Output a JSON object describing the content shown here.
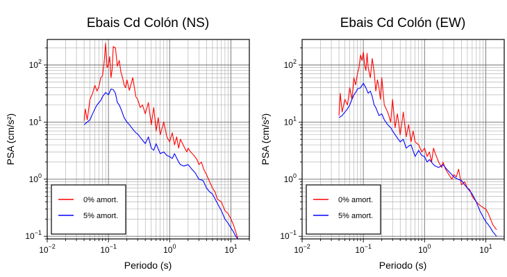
{
  "chart_data": [
    {
      "type": "line",
      "title": "Ebais Cd Colón (NS)",
      "xlabel": "Periodo (s)",
      "ylabel": "PSA (cm/s²)",
      "x_scale": "log",
      "y_scale": "log",
      "xlim": [
        0.01,
        20
      ],
      "ylim": [
        0.09,
        280
      ],
      "x_ticks": [
        {
          "base": "10",
          "exp": "−2",
          "value": 0.01
        },
        {
          "base": "10",
          "exp": "−1",
          "value": 0.1
        },
        {
          "base": "10",
          "exp": "0",
          "value": 1
        },
        {
          "base": "10",
          "exp": "1",
          "value": 10
        }
      ],
      "y_ticks": [
        {
          "base": "10",
          "exp": "−1",
          "value": 0.1
        },
        {
          "base": "10",
          "exp": "0",
          "value": 1
        },
        {
          "base": "10",
          "exp": "1",
          "value": 10
        },
        {
          "base": "10",
          "exp": "2",
          "value": 100
        }
      ],
      "grid": true,
      "legend_position": "bottom-left",
      "series": [
        {
          "name": "0% amort.",
          "color": "#ff0000",
          "x": [
            0.04,
            0.042,
            0.045,
            0.05,
            0.055,
            0.06,
            0.065,
            0.07,
            0.075,
            0.08,
            0.085,
            0.09,
            0.095,
            0.1,
            0.105,
            0.11,
            0.115,
            0.12,
            0.13,
            0.14,
            0.15,
            0.16,
            0.17,
            0.18,
            0.19,
            0.2,
            0.22,
            0.25,
            0.28,
            0.3,
            0.33,
            0.36,
            0.4,
            0.45,
            0.5,
            0.55,
            0.6,
            0.65,
            0.7,
            0.8,
            0.9,
            1.0,
            1.1,
            1.2,
            1.3,
            1.4,
            1.5,
            1.7,
            1.9,
            2.0,
            2.2,
            2.5,
            2.8,
            3.0,
            3.3,
            3.6,
            4.0,
            4.5,
            5.0,
            5.5,
            6.0,
            7.0,
            8.0,
            9.0,
            10.0,
            11.0,
            12.0,
            13.0
          ],
          "values": [
            10.5,
            17,
            11,
            25,
            32,
            44,
            35,
            42,
            60,
            65,
            110,
            240,
            90,
            100,
            140,
            60,
            85,
            210,
            200,
            95,
            120,
            75,
            60,
            45,
            40,
            55,
            36,
            60,
            28,
            25,
            18,
            20,
            14,
            22,
            9,
            18,
            7,
            12,
            6,
            10,
            5.5,
            4.5,
            6.5,
            4,
            5.5,
            3.5,
            5,
            3.8,
            3,
            3.5,
            3.0,
            2.6,
            2.2,
            1.8,
            2.0,
            1.5,
            1.2,
            0.9,
            0.7,
            0.6,
            0.45,
            0.4,
            0.28,
            0.25,
            0.2,
            0.16,
            0.12,
            0.09
          ]
        },
        {
          "name": "5% amort.",
          "color": "#0000ff",
          "x": [
            0.04,
            0.045,
            0.05,
            0.055,
            0.06,
            0.065,
            0.07,
            0.075,
            0.08,
            0.09,
            0.1,
            0.11,
            0.12,
            0.13,
            0.14,
            0.15,
            0.16,
            0.18,
            0.2,
            0.22,
            0.25,
            0.28,
            0.3,
            0.35,
            0.4,
            0.45,
            0.5,
            0.55,
            0.6,
            0.7,
            0.8,
            0.9,
            1.0,
            1.1,
            1.2,
            1.4,
            1.5,
            1.7,
            2.0,
            2.3,
            2.6,
            3.0,
            3.5,
            4.0,
            4.5,
            5.0,
            6.0,
            7.0,
            8.0,
            9.0,
            10.0,
            11.0,
            12.0,
            13.0
          ],
          "values": [
            9.0,
            10,
            11,
            14,
            17,
            20,
            22,
            24,
            28,
            33,
            30,
            38,
            37,
            32,
            22,
            20,
            17,
            12,
            10,
            9,
            7.5,
            6.5,
            6.2,
            5.0,
            4.2,
            5.5,
            3.5,
            3.2,
            4.2,
            2.8,
            3.0,
            2.6,
            2.5,
            2.3,
            2.8,
            2.0,
            1.8,
            1.7,
            1.8,
            1.5,
            1.3,
            1.0,
            0.95,
            0.7,
            0.6,
            0.55,
            0.38,
            0.28,
            0.2,
            0.17,
            0.14,
            0.12,
            0.1,
            0.09
          ]
        }
      ]
    },
    {
      "type": "line",
      "title": "Ebais Cd Colón (EW)",
      "xlabel": "Periodo (s)",
      "ylabel": "PSA (cm/s²)",
      "x_scale": "log",
      "y_scale": "log",
      "xlim": [
        0.01,
        20
      ],
      "ylim": [
        0.09,
        280
      ],
      "x_ticks": [
        {
          "base": "10",
          "exp": "−2",
          "value": 0.01
        },
        {
          "base": "10",
          "exp": "−1",
          "value": 0.1
        },
        {
          "base": "10",
          "exp": "0",
          "value": 1
        },
        {
          "base": "10",
          "exp": "1",
          "value": 10
        }
      ],
      "y_ticks": [
        {
          "base": "10",
          "exp": "−1",
          "value": 0.1
        },
        {
          "base": "10",
          "exp": "0",
          "value": 1
        },
        {
          "base": "10",
          "exp": "1",
          "value": 10
        },
        {
          "base": "10",
          "exp": "2",
          "value": 100
        }
      ],
      "grid": true,
      "legend_position": "bottom-left",
      "series": [
        {
          "name": "0% amort.",
          "color": "#ff0000",
          "x": [
            0.04,
            0.042,
            0.045,
            0.05,
            0.055,
            0.06,
            0.065,
            0.07,
            0.075,
            0.08,
            0.085,
            0.09,
            0.095,
            0.1,
            0.105,
            0.11,
            0.115,
            0.12,
            0.13,
            0.14,
            0.15,
            0.16,
            0.17,
            0.18,
            0.19,
            0.2,
            0.22,
            0.25,
            0.28,
            0.3,
            0.33,
            0.36,
            0.4,
            0.45,
            0.5,
            0.55,
            0.6,
            0.65,
            0.7,
            0.8,
            0.9,
            1.0,
            1.1,
            1.2,
            1.3,
            1.4,
            1.5,
            1.7,
            1.9,
            2.0,
            2.2,
            2.5,
            2.8,
            3.0,
            3.3,
            3.6,
            4.0,
            4.5,
            5.0,
            5.5,
            6.0,
            7.0,
            8.0,
            9.0,
            10.0,
            11.0,
            12.0,
            13.0,
            15.0
          ],
          "values": [
            13,
            32,
            15,
            25,
            20,
            40,
            25,
            60,
            45,
            70,
            90,
            150,
            120,
            170,
            100,
            80,
            160,
            90,
            60,
            130,
            75,
            35,
            55,
            40,
            25,
            60,
            20,
            15,
            10,
            25,
            8,
            14,
            6,
            15,
            5.5,
            9,
            4.5,
            7,
            4.5,
            4,
            3.0,
            3.5,
            2.5,
            3.0,
            2.0,
            3.5,
            2.8,
            2.0,
            1.6,
            2.0,
            1.5,
            1.2,
            1.0,
            1.2,
            1.1,
            1.5,
            0.8,
            0.9,
            0.7,
            0.65,
            0.5,
            0.4,
            0.35,
            0.32,
            0.3,
            0.25,
            0.2,
            0.16,
            0.13
          ]
        },
        {
          "name": "5% amort.",
          "color": "#0000ff",
          "x": [
            0.04,
            0.045,
            0.05,
            0.055,
            0.06,
            0.065,
            0.07,
            0.075,
            0.08,
            0.09,
            0.1,
            0.11,
            0.12,
            0.13,
            0.14,
            0.15,
            0.16,
            0.18,
            0.2,
            0.22,
            0.25,
            0.28,
            0.3,
            0.35,
            0.4,
            0.45,
            0.5,
            0.55,
            0.6,
            0.7,
            0.8,
            0.9,
            1.0,
            1.1,
            1.2,
            1.4,
            1.5,
            1.7,
            2.0,
            2.3,
            2.6,
            3.0,
            3.5,
            4.0,
            4.5,
            5.0,
            6.0,
            7.0,
            8.0,
            9.0,
            10.0,
            11.0,
            12.0,
            13.0,
            15.0
          ],
          "values": [
            12,
            13,
            15,
            17,
            20,
            25,
            30,
            33,
            38,
            40,
            48,
            40,
            32,
            35,
            28,
            20,
            18,
            13,
            14,
            11,
            9,
            8,
            7,
            5.5,
            4.5,
            5.0,
            3.5,
            3.8,
            4.0,
            2.5,
            3.2,
            2.6,
            2.5,
            2.0,
            2.2,
            1.8,
            1.7,
            1.6,
            1.8,
            1.5,
            1.3,
            1.1,
            1.0,
            0.95,
            0.8,
            0.7,
            0.55,
            0.4,
            0.28,
            0.22,
            0.18,
            0.16,
            0.14,
            0.12,
            0.1
          ]
        }
      ]
    }
  ]
}
